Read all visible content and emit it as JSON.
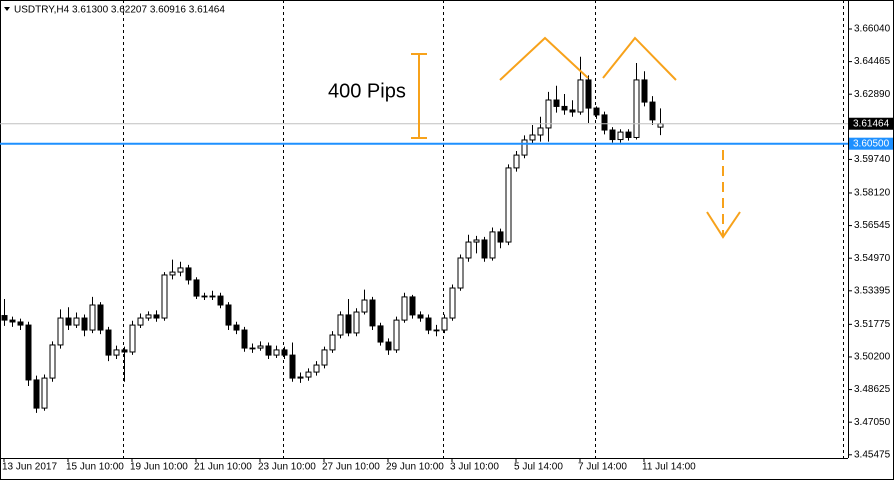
{
  "chart_data": {
    "type": "candlestick",
    "title": "USDTRY,H4  3.61300 3.62207 3.60916 3.61464",
    "categories": [
      "13 Jun 2017",
      null,
      null,
      null,
      null,
      null,
      null,
      null,
      "15 Jun 10:00",
      null,
      null,
      null,
      null,
      null,
      null,
      null,
      "19 Jun 10:00",
      null,
      null,
      null,
      null,
      null,
      null,
      null,
      "21 Jun 10:00",
      null,
      null,
      null,
      null,
      null,
      null,
      null,
      "23 Jun 10:00",
      null,
      null,
      null,
      null,
      null,
      null,
      null,
      "27 Jun 10:00",
      null,
      null,
      null,
      null,
      null,
      null,
      null,
      "29 Jun 10:00",
      null,
      null,
      null,
      null,
      null,
      null,
      null,
      "3 Jul 10:00",
      null,
      null,
      null,
      null,
      null,
      null,
      null,
      "5 Jul 14:00",
      null,
      null,
      null,
      null,
      null,
      null,
      null,
      "7 Jul 14:00",
      null,
      null,
      null,
      null,
      null,
      null,
      null,
      "11 Jul 14:00",
      null,
      null
    ],
    "open": [
      3.522,
      3.5198,
      3.5189,
      3.5174,
      3.4909,
      3.4773,
      3.4918,
      3.5078,
      3.5208,
      3.5174,
      3.5208,
      3.515,
      3.5271,
      3.515,
      3.5029,
      3.5054,
      3.5044,
      3.5174,
      3.5208,
      3.5223,
      3.5208,
      3.5416,
      3.543,
      3.545,
      3.5392,
      3.5314,
      3.531,
      3.5314,
      3.5271,
      3.5174,
      3.515,
      3.5063,
      3.5063,
      3.5073,
      3.5029,
      3.5054,
      3.5029,
      3.4918,
      3.4923,
      3.4947,
      3.4981,
      3.5054,
      3.5126,
      3.5223,
      3.5136,
      3.5237,
      3.5295,
      3.517,
      3.5092,
      3.5054,
      3.5198,
      3.531,
      3.5223,
      3.5208,
      3.515,
      3.515,
      3.5208,
      3.5353,
      3.5498,
      3.5575,
      3.5585,
      3.5498,
      3.5624,
      3.5575,
      3.5933,
      3.5995,
      3.6068,
      3.6092,
      3.6126,
      3.6261,
      3.623,
      3.6213,
      3.6203,
      3.6358,
      3.6222,
      3.6189,
      3.6116,
      3.607,
      3.6106,
      3.608,
      3.6358,
      3.6251,
      3.613
    ],
    "high": [
      3.53,
      3.5215,
      3.5205,
      3.519,
      3.493,
      3.4935,
      3.5095,
      3.525,
      3.526,
      3.5235,
      3.5225,
      3.531,
      3.5285,
      3.5165,
      3.5075,
      3.507,
      3.5195,
      3.523,
      3.524,
      3.5245,
      3.543,
      3.549,
      3.548,
      3.5465,
      3.5405,
      3.533,
      3.534,
      3.533,
      3.5285,
      3.519,
      3.5165,
      3.5085,
      3.5095,
      3.509,
      3.5075,
      3.507,
      3.509,
      3.4945,
      3.4965,
      3.5,
      3.507,
      3.5145,
      3.524,
      3.53,
      3.5255,
      3.5345,
      3.531,
      3.5185,
      3.511,
      3.5215,
      3.533,
      3.532,
      3.524,
      3.5225,
      3.5175,
      3.5225,
      3.537,
      3.5515,
      3.561,
      3.5605,
      3.56,
      3.5645,
      3.564,
      3.595,
      3.6015,
      3.609,
      3.614,
      3.618,
      3.63,
      3.633,
      3.629,
      3.626,
      3.647,
      3.638,
      3.623,
      3.6205,
      3.613,
      3.612,
      3.612,
      3.644,
      3.64,
      3.628,
      3.62207
    ],
    "low": [
      3.517,
      3.5165,
      3.515,
      3.488,
      3.475,
      3.476,
      3.49,
      3.506,
      3.515,
      3.516,
      3.512,
      3.5135,
      3.513,
      3.5,
      3.501,
      3.49,
      3.503,
      3.516,
      3.5195,
      3.519,
      3.5195,
      3.5395,
      3.541,
      3.537,
      3.53,
      3.5295,
      3.5295,
      3.5255,
      3.515,
      3.513,
      3.5045,
      3.504,
      3.505,
      3.501,
      3.5015,
      3.501,
      3.49,
      3.4895,
      3.4905,
      3.493,
      3.4965,
      3.504,
      3.511,
      3.512,
      3.512,
      3.5225,
      3.515,
      3.5075,
      3.503,
      3.504,
      3.5185,
      3.5205,
      3.519,
      3.513,
      3.512,
      3.5135,
      3.5195,
      3.534,
      3.548,
      3.552,
      3.548,
      3.5485,
      3.5545,
      3.556,
      3.5915,
      3.598,
      3.605,
      3.606,
      3.606,
      3.62,
      3.619,
      3.618,
      3.619,
      3.615,
      3.617,
      3.6095,
      3.6055,
      3.6055,
      3.6065,
      3.607,
      3.623,
      3.614,
      3.60916
    ],
    "close": [
      3.5198,
      3.5189,
      3.5174,
      3.4909,
      3.4773,
      3.4918,
      3.5078,
      3.5208,
      3.5174,
      3.5208,
      3.515,
      3.5271,
      3.515,
      3.5029,
      3.5054,
      3.5044,
      3.5174,
      3.5208,
      3.5223,
      3.5208,
      3.5416,
      3.543,
      3.545,
      3.5392,
      3.5314,
      3.531,
      3.5314,
      3.5271,
      3.5174,
      3.515,
      3.5063,
      3.5063,
      3.5073,
      3.5029,
      3.5054,
      3.5029,
      3.4918,
      3.4923,
      3.4947,
      3.4981,
      3.5054,
      3.5126,
      3.5223,
      3.5136,
      3.5237,
      3.5295,
      3.517,
      3.5092,
      3.5054,
      3.5198,
      3.531,
      3.5223,
      3.5208,
      3.515,
      3.515,
      3.5208,
      3.5353,
      3.5498,
      3.5575,
      3.5585,
      3.5498,
      3.5624,
      3.5575,
      3.5933,
      3.5995,
      3.6068,
      3.6092,
      3.6126,
      3.6261,
      3.623,
      3.6213,
      3.6203,
      3.6358,
      3.6222,
      3.6189,
      3.6116,
      3.607,
      3.6106,
      3.608,
      3.6358,
      3.6251,
      3.6165,
      3.61464
    ],
    "bull_color": "#ffffff",
    "bear_color": "#000000",
    "ylim": [
      3.4532,
      3.6744
    ],
    "yticks": [
      {
        "value": 3.6604,
        "label": "3.66040"
      },
      {
        "value": 3.64465,
        "label": "3.64465"
      },
      {
        "value": 3.6289,
        "label": "3.62890"
      },
      {
        "value": 3.5974,
        "label": "3.59740"
      },
      {
        "value": 3.5812,
        "label": "3.58120"
      },
      {
        "value": 3.56545,
        "label": "3.56545"
      },
      {
        "value": 3.5497,
        "label": "3.54970"
      },
      {
        "value": 3.53395,
        "label": "3.53395"
      },
      {
        "value": 3.51775,
        "label": "3.51775"
      },
      {
        "value": 3.502,
        "label": "3.50200"
      },
      {
        "value": 3.48625,
        "label": "3.48625"
      },
      {
        "value": 3.4705,
        "label": "3.47050"
      },
      {
        "value": 3.45475,
        "label": "3.45475"
      }
    ],
    "hlines": [
      {
        "value": 3.61464,
        "label": "3.61464",
        "color": "#c0c0c0",
        "label_bg": "#000000"
      },
      {
        "value": 3.605,
        "label": "3.60500",
        "color": "#1e90ff",
        "label_bg": "#1e90ff"
      }
    ],
    "annotation": {
      "text": "400 Pips",
      "color": "#e8141e"
    }
  }
}
